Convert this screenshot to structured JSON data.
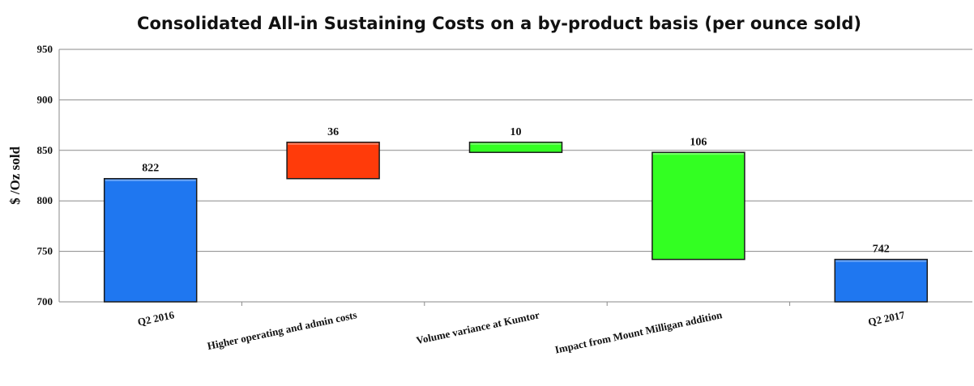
{
  "colors": {
    "total": "#1f77f0",
    "increase": "#ff3b0a",
    "decrease": "#33ff22",
    "grid": "#8a8a8a",
    "bar_outline": "#1a1a1a"
  },
  "chart_data": {
    "type": "bar",
    "subtype": "waterfall",
    "title": "Consolidated All-in Sustaining Costs on a by-product basis (per ounce sold)",
    "xlabel": "",
    "ylabel": "$ /Oz sold",
    "ylim": [
      700,
      950
    ],
    "yticks": [
      700,
      750,
      800,
      850,
      900,
      950
    ],
    "grid": true,
    "legend": "none",
    "categories": [
      "Q2 2016",
      "Higher operating and admin costs",
      "Volume variance at Kumtor",
      "Impact from Mount Milligan addition",
      "Q2 2017"
    ],
    "steps": [
      {
        "kind": "total",
        "from": 700,
        "to": 822,
        "label": "822"
      },
      {
        "kind": "increase",
        "from": 822,
        "to": 858,
        "label": "36"
      },
      {
        "kind": "decrease",
        "from": 858,
        "to": 848,
        "label": "10"
      },
      {
        "kind": "decrease",
        "from": 848,
        "to": 742,
        "label": "106"
      },
      {
        "kind": "total",
        "from": 700,
        "to": 742,
        "label": "742"
      }
    ]
  }
}
